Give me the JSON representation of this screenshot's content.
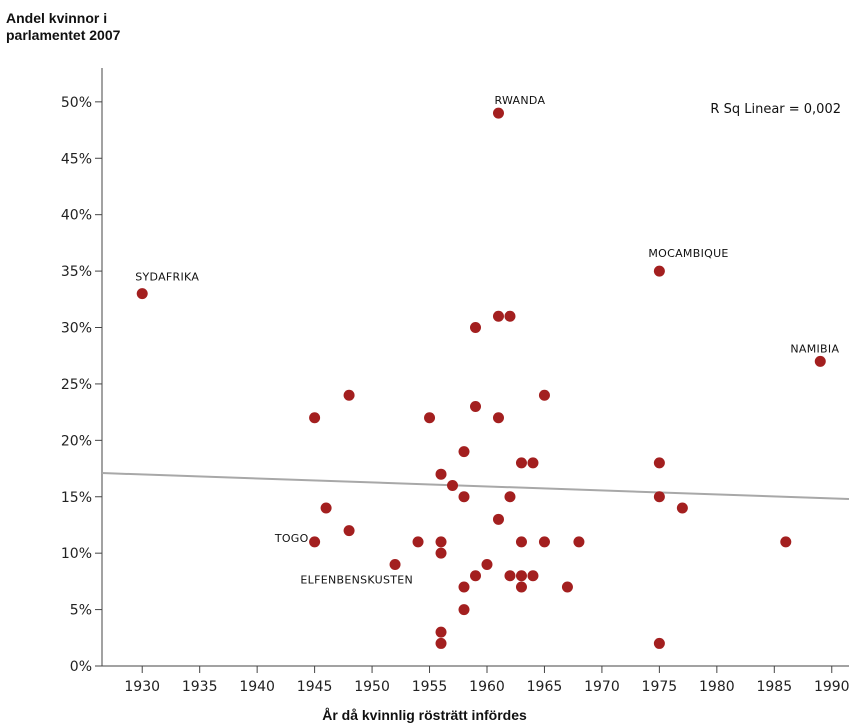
{
  "chart_data": {
    "type": "scatter",
    "title": "",
    "ylabel": "Andel kvinnor i parlamentet 2007",
    "xlabel": "År då kvinnlig rösträtt infördes",
    "xlim": [
      1926.5,
      1991.5
    ],
    "ylim": [
      0,
      0.53
    ],
    "xticks": [
      1930,
      1935,
      1940,
      1945,
      1950,
      1955,
      1960,
      1965,
      1970,
      1975,
      1980,
      1985,
      1990
    ],
    "xtick_labels": [
      "1930",
      "1935",
      "1940",
      "1945",
      "1950",
      "1955",
      "1960",
      "1965",
      "1970",
      "1975",
      "1980",
      "1985",
      "1990"
    ],
    "yticks": [
      0,
      0.05,
      0.1,
      0.15,
      0.2,
      0.25,
      0.3,
      0.35,
      0.4,
      0.45,
      0.5
    ],
    "ytick_labels": [
      "0%",
      "5%",
      "10%",
      "15%",
      "20%",
      "25%",
      "30%",
      "35%",
      "40%",
      "45%",
      "50%"
    ],
    "grid": false,
    "marker_color": "#a31f1f",
    "line_color": "#a8a8a8",
    "points": [
      {
        "x": 1930,
        "y": 0.33
      },
      {
        "x": 1945,
        "y": 0.22
      },
      {
        "x": 1945,
        "y": 0.11
      },
      {
        "x": 1946,
        "y": 0.14
      },
      {
        "x": 1948,
        "y": 0.24
      },
      {
        "x": 1948,
        "y": 0.12
      },
      {
        "x": 1952,
        "y": 0.09
      },
      {
        "x": 1954,
        "y": 0.11
      },
      {
        "x": 1955,
        "y": 0.22
      },
      {
        "x": 1956,
        "y": 0.17
      },
      {
        "x": 1956,
        "y": 0.11
      },
      {
        "x": 1956,
        "y": 0.1
      },
      {
        "x": 1956,
        "y": 0.03
      },
      {
        "x": 1956,
        "y": 0.02
      },
      {
        "x": 1957,
        "y": 0.16
      },
      {
        "x": 1958,
        "y": 0.19
      },
      {
        "x": 1958,
        "y": 0.15
      },
      {
        "x": 1958,
        "y": 0.07
      },
      {
        "x": 1958,
        "y": 0.05
      },
      {
        "x": 1959,
        "y": 0.3
      },
      {
        "x": 1959,
        "y": 0.23
      },
      {
        "x": 1959,
        "y": 0.08
      },
      {
        "x": 1960,
        "y": 0.09
      },
      {
        "x": 1961,
        "y": 0.49
      },
      {
        "x": 1961,
        "y": 0.31
      },
      {
        "x": 1961,
        "y": 0.22
      },
      {
        "x": 1961,
        "y": 0.13
      },
      {
        "x": 1962,
        "y": 0.31
      },
      {
        "x": 1962,
        "y": 0.15
      },
      {
        "x": 1962,
        "y": 0.08
      },
      {
        "x": 1963,
        "y": 0.18
      },
      {
        "x": 1963,
        "y": 0.11
      },
      {
        "x": 1963,
        "y": 0.08
      },
      {
        "x": 1963,
        "y": 0.07
      },
      {
        "x": 1964,
        "y": 0.18
      },
      {
        "x": 1964,
        "y": 0.08
      },
      {
        "x": 1965,
        "y": 0.24
      },
      {
        "x": 1965,
        "y": 0.11
      },
      {
        "x": 1967,
        "y": 0.07
      },
      {
        "x": 1968,
        "y": 0.11
      },
      {
        "x": 1975,
        "y": 0.35
      },
      {
        "x": 1975,
        "y": 0.18
      },
      {
        "x": 1975,
        "y": 0.15
      },
      {
        "x": 1975,
        "y": 0.02
      },
      {
        "x": 1977,
        "y": 0.14
      },
      {
        "x": 1986,
        "y": 0.11
      },
      {
        "x": 1989,
        "y": 0.27
      }
    ],
    "fit_line": {
      "x": [
        1926.5,
        1991.5
      ],
      "y": [
        0.171,
        0.148
      ]
    },
    "annotations": [
      {
        "text": "RWANDA",
        "x": 1961,
        "y": 0.49
      },
      {
        "text": "SYDAFRIKA",
        "x": 1930,
        "y": 0.33
      },
      {
        "text": "MOCAMBIQUE",
        "x": 1975,
        "y": 0.35
      },
      {
        "text": "NAMIBIA",
        "x": 1989,
        "y": 0.27
      },
      {
        "text": "TOGO",
        "x": 1945,
        "y": 0.11
      },
      {
        "text": "ELFENBENSKUSTEN",
        "x": 1952,
        "y": 0.09
      }
    ],
    "r_squared_label": "R Sq Linear = 0,002"
  }
}
